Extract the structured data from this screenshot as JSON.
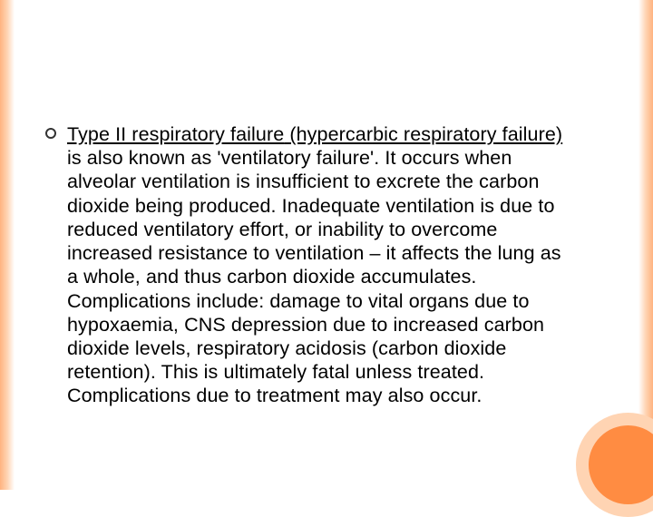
{
  "slide": {
    "underlined_prefix": "Type II respiratory failure",
    "underlined_paren": " (hypercarbic respiratory failure)",
    "body_rest": " is also known as 'ventilatory failure'. It occurs when alveolar ventilation is insufficient to excrete the carbon dioxide being produced. Inadequate ventilation is due to reduced ventilatory effort, or inability to overcome increased resistance to ventilation – it affects the lung as a whole, and thus carbon dioxide accumulates. Complications include: damage to vital organs due to hypoxaemia, CNS depression due to increased carbon dioxide levels, respiratory acidosis (carbon dioxide retention). This is ultimately fatal unless treated. Complications due to treatment may also occur."
  },
  "style": {
    "background_color": "#ffffff",
    "border_gradient_from": "#ffb380",
    "border_gradient_to": "#ffffff",
    "accent_circle_fill": "#ff8c42",
    "accent_circle_ring": "#ffd4b3",
    "text_color": "#000000",
    "bullet_border_color": "#333333",
    "font_size_pt": 16,
    "font_family": "Arial"
  }
}
